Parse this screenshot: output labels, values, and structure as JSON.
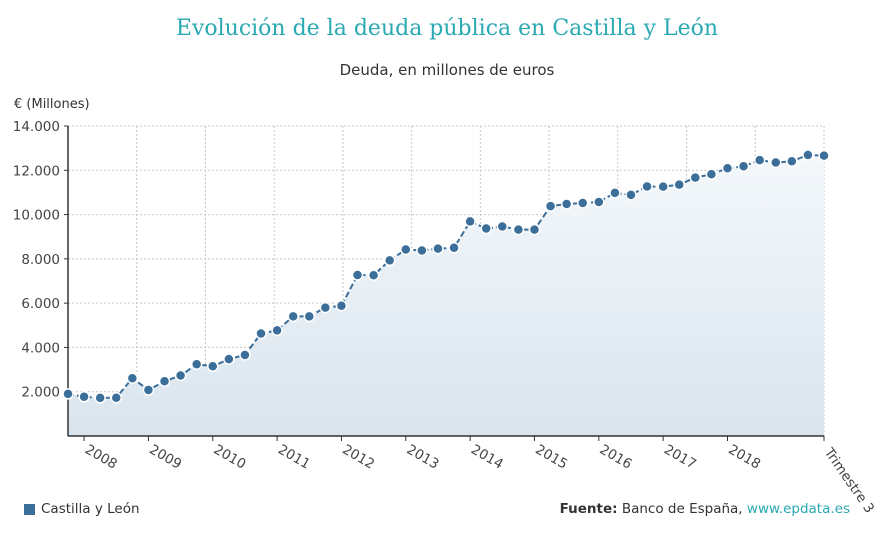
{
  "header": {
    "title": "Evolución de la deuda pública en Castilla y León",
    "subtitle": "Deuda, en millones de euros"
  },
  "legend": {
    "label": "Castilla y León"
  },
  "source": {
    "label": "Fuente:",
    "name": "Banco de España,",
    "link": "www.epdata.es"
  },
  "colors": {
    "series": "#3b6e99",
    "title": "#2aa9b3",
    "fill_top": "#f4f8fb",
    "fill_bottom": "#d9e5ee"
  },
  "chart_data": {
    "type": "area",
    "title": "Evolución de la deuda pública en Castilla y León",
    "subtitle": "Deuda, en millones de euros",
    "ylabel": "€ (Millones)",
    "ylim": [
      0,
      14000
    ],
    "yticks": [
      2000,
      4000,
      6000,
      8000,
      10000,
      12000,
      14000
    ],
    "ytick_labels": [
      "2.000",
      "4.000",
      "6.000",
      "8.000",
      "10.000",
      "12.000",
      "14.000"
    ],
    "grid": true,
    "legend": "bottom-left",
    "x_labels": [
      {
        "index": 1,
        "label": "2008"
      },
      {
        "index": 5,
        "label": "2009"
      },
      {
        "index": 9,
        "label": "2010"
      },
      {
        "index": 13,
        "label": "2011"
      },
      {
        "index": 17,
        "label": "2012"
      },
      {
        "index": 21,
        "label": "2013"
      },
      {
        "index": 25,
        "label": "2014"
      },
      {
        "index": 29,
        "label": "2015"
      },
      {
        "index": 33,
        "label": "2016"
      },
      {
        "index": 37,
        "label": "2017"
      },
      {
        "index": 41,
        "label": "2018"
      },
      {
        "index": 47,
        "label": "Trimestre 3"
      }
    ],
    "series": [
      {
        "name": "Castilla y León",
        "values": [
          1900,
          1770,
          1720,
          1730,
          2610,
          2080,
          2470,
          2730,
          3240,
          3150,
          3470,
          3660,
          4630,
          4770,
          5400,
          5400,
          5800,
          5880,
          7270,
          7260,
          7930,
          8420,
          8380,
          8460,
          8500,
          9690,
          9370,
          9460,
          9320,
          9320,
          10380,
          10480,
          10520,
          10570,
          10980,
          10890,
          11270,
          11260,
          11350,
          11670,
          11820,
          12090,
          12180,
          12460,
          12350,
          12410,
          12690,
          12660
        ]
      }
    ]
  }
}
